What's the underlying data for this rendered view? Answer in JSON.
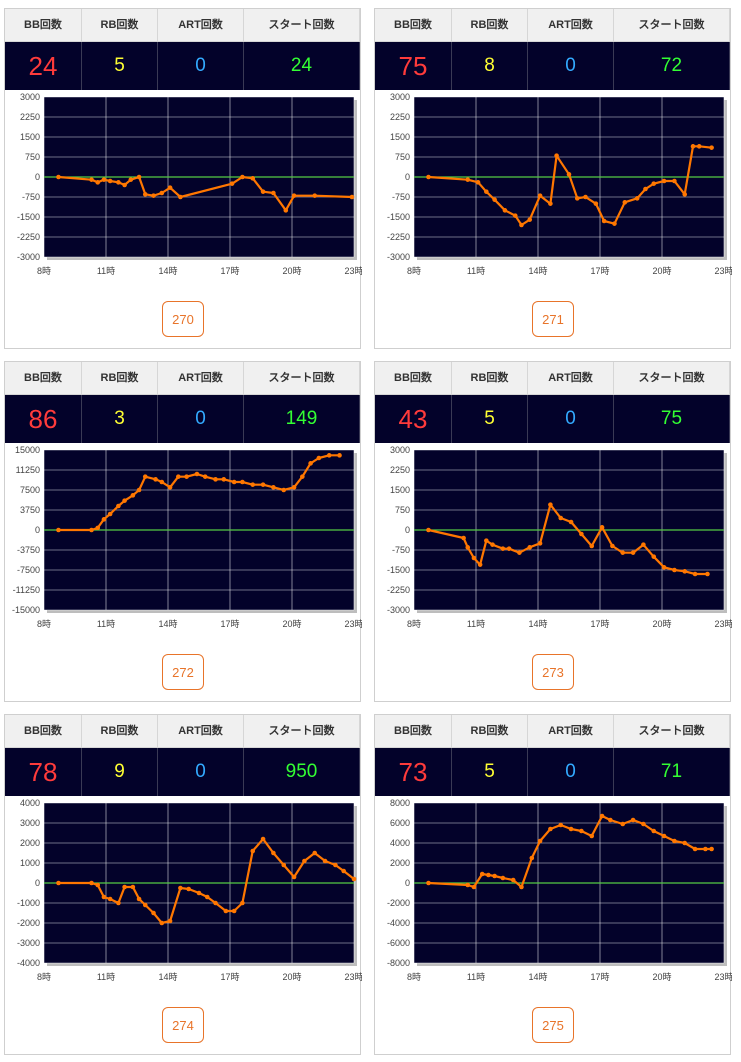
{
  "header_labels": {
    "bb": "BB回数",
    "rb": "RB回数",
    "art": "ART回数",
    "start": "スタート回数"
  },
  "colors": {
    "plot_bg": "#03022a",
    "line": "#ff7700",
    "zero_line": "#55cc44",
    "grid": "#ffffff",
    "bb": "#ff3b3b",
    "rb": "#ffff33",
    "art": "#33aaff",
    "start": "#33ff33",
    "button": "#e8742a"
  },
  "panels": [
    {
      "id": "270",
      "bb": "24",
      "rb": "5",
      "art": "0",
      "start": "24"
    },
    {
      "id": "271",
      "bb": "75",
      "rb": "8",
      "art": "0",
      "start": "72"
    },
    {
      "id": "272",
      "bb": "86",
      "rb": "3",
      "art": "0",
      "start": "149"
    },
    {
      "id": "273",
      "bb": "43",
      "rb": "5",
      "art": "0",
      "start": "75"
    },
    {
      "id": "274",
      "bb": "78",
      "rb": "9",
      "art": "0",
      "start": "950"
    },
    {
      "id": "275",
      "bb": "73",
      "rb": "5",
      "art": "0",
      "start": "71"
    }
  ],
  "chart_data": [
    {
      "type": "line",
      "xlim": [
        8,
        23
      ],
      "x_ticks": [
        "8時",
        "11時",
        "14時",
        "17時",
        "20時",
        "23時"
      ],
      "ylim": [
        -3000,
        3000
      ],
      "y_ticks": [
        "3000",
        "2250",
        "1500",
        "750",
        "0",
        "-750",
        "-1500",
        "-2250",
        "-3000"
      ],
      "grid": true,
      "series": [
        {
          "x": [
            8.7,
            10.3,
            10.6,
            10.9,
            11.2,
            11.6,
            11.9,
            12.2,
            12.6,
            12.9,
            13.3,
            13.7,
            14.1,
            14.6,
            17.1,
            17.6,
            18.1,
            18.6,
            19.1,
            19.7,
            20.1,
            21.1,
            22.9
          ],
          "y": [
            0,
            -100,
            -200,
            -100,
            -150,
            -200,
            -300,
            -100,
            0,
            -650,
            -700,
            -600,
            -400,
            -750,
            -250,
            0,
            -50,
            -550,
            -600,
            -1250,
            -700,
            -700,
            -750
          ]
        }
      ]
    },
    {
      "type": "line",
      "xlim": [
        8,
        23
      ],
      "x_ticks": [
        "8時",
        "11時",
        "14時",
        "17時",
        "20時",
        "23時"
      ],
      "ylim": [
        -3000,
        3000
      ],
      "y_ticks": [
        "3000",
        "2250",
        "1500",
        "750",
        "0",
        "-750",
        "-1500",
        "-2250",
        "-3000"
      ],
      "grid": true,
      "series": [
        {
          "x": [
            8.7,
            10.6,
            11.1,
            11.5,
            11.9,
            12.4,
            12.9,
            13.2,
            13.6,
            14.1,
            14.6,
            14.9,
            15.5,
            15.9,
            16.3,
            16.8,
            17.2,
            17.7,
            18.2,
            18.8,
            19.2,
            19.6,
            20.1,
            20.6,
            21.1,
            21.5,
            21.8,
            22.4
          ],
          "y": [
            0,
            -100,
            -200,
            -550,
            -850,
            -1250,
            -1450,
            -1800,
            -1600,
            -700,
            -1000,
            800,
            100,
            -800,
            -750,
            -1000,
            -1650,
            -1750,
            -950,
            -800,
            -450,
            -250,
            -150,
            -150,
            -650,
            1150,
            1150,
            1100
          ]
        }
      ]
    },
    {
      "type": "line",
      "xlim": [
        8,
        23
      ],
      "x_ticks": [
        "8時",
        "11時",
        "14時",
        "17時",
        "20時",
        "23時"
      ],
      "ylim": [
        -15000,
        15000
      ],
      "y_ticks": [
        "15000",
        "11250",
        "7500",
        "3750",
        "0",
        "-3750",
        "-7500",
        "-11250",
        "-15000"
      ],
      "grid": true,
      "series": [
        {
          "x": [
            8.7,
            10.3,
            10.6,
            10.9,
            11.2,
            11.6,
            11.9,
            12.3,
            12.6,
            12.9,
            13.4,
            13.7,
            14.1,
            14.5,
            14.9,
            15.4,
            15.8,
            16.3,
            16.7,
            17.2,
            17.6,
            18.1,
            18.6,
            19.1,
            19.6,
            20.1,
            20.5,
            20.9,
            21.3,
            21.8,
            22.3
          ],
          "y": [
            0,
            0,
            400,
            2000,
            3000,
            4500,
            5500,
            6500,
            7500,
            10000,
            9500,
            9000,
            8000,
            10000,
            10000,
            10500,
            10000,
            9500,
            9500,
            9000,
            9000,
            8500,
            8500,
            8000,
            7500,
            8000,
            10000,
            12500,
            13500,
            14000,
            14000
          ]
        }
      ]
    },
    {
      "type": "line",
      "xlim": [
        8,
        23
      ],
      "x_ticks": [
        "8時",
        "11時",
        "14時",
        "17時",
        "20時",
        "23時"
      ],
      "ylim": [
        -3000,
        3000
      ],
      "y_ticks": [
        "3000",
        "2250",
        "1500",
        "750",
        "0",
        "-750",
        "-1500",
        "-2250",
        "-3000"
      ],
      "grid": true,
      "series": [
        {
          "x": [
            8.7,
            10.4,
            10.6,
            10.9,
            11.2,
            11.5,
            11.8,
            12.3,
            12.6,
            13.1,
            13.6,
            14.1,
            14.6,
            15.1,
            15.6,
            16.1,
            16.6,
            17.1,
            17.6,
            18.1,
            18.6,
            19.1,
            19.6,
            20.1,
            20.6,
            21.1,
            21.6,
            22.2
          ],
          "y": [
            0,
            -300,
            -650,
            -1050,
            -1300,
            -400,
            -550,
            -700,
            -700,
            -850,
            -650,
            -500,
            950,
            450,
            300,
            -150,
            -600,
            100,
            -600,
            -850,
            -850,
            -550,
            -1000,
            -1400,
            -1500,
            -1550,
            -1650,
            -1650
          ]
        }
      ]
    },
    {
      "type": "line",
      "xlim": [
        8,
        23
      ],
      "x_ticks": [
        "8時",
        "11時",
        "14時",
        "17時",
        "20時",
        "23時"
      ],
      "ylim": [
        -4000,
        4000
      ],
      "y_ticks": [
        "4000",
        "3000",
        "2000",
        "1000",
        "0",
        "-1000",
        "-2000",
        "-3000",
        "-4000"
      ],
      "grid": true,
      "series": [
        {
          "x": [
            8.7,
            10.3,
            10.6,
            10.9,
            11.2,
            11.6,
            11.9,
            12.3,
            12.6,
            12.9,
            13.3,
            13.7,
            14.1,
            14.6,
            15.0,
            15.5,
            15.9,
            16.3,
            16.8,
            17.2,
            17.6,
            18.1,
            18.6,
            19.1,
            19.6,
            20.1,
            20.6,
            21.1,
            21.6,
            22.1,
            22.5,
            23.0
          ],
          "y": [
            0,
            0,
            -100,
            -700,
            -800,
            -1000,
            -200,
            -200,
            -800,
            -1100,
            -1500,
            -2000,
            -1900,
            -250,
            -300,
            -500,
            -700,
            -1000,
            -1400,
            -1400,
            -1000,
            1600,
            2200,
            1500,
            900,
            300,
            1100,
            1500,
            1100,
            900,
            600,
            200
          ]
        }
      ]
    },
    {
      "type": "line",
      "xlim": [
        8,
        23
      ],
      "x_ticks": [
        "8時",
        "11時",
        "14時",
        "17時",
        "20時",
        "23時"
      ],
      "ylim": [
        -8000,
        8000
      ],
      "y_ticks": [
        "8000",
        "6000",
        "4000",
        "2000",
        "0",
        "-2000",
        "-4000",
        "-6000",
        "-8000"
      ],
      "grid": true,
      "series": [
        {
          "x": [
            8.7,
            10.6,
            10.9,
            11.3,
            11.6,
            11.9,
            12.3,
            12.8,
            13.2,
            13.7,
            14.1,
            14.6,
            15.1,
            15.6,
            16.1,
            16.6,
            17.1,
            17.5,
            18.1,
            18.6,
            19.1,
            19.6,
            20.1,
            20.6,
            21.1,
            21.6,
            22.1,
            22.4
          ],
          "y": [
            0,
            -200,
            -400,
            900,
            800,
            700,
            500,
            300,
            -400,
            2500,
            4200,
            5400,
            5800,
            5400,
            5200,
            4700,
            6700,
            6300,
            5900,
            6300,
            5900,
            5200,
            4700,
            4200,
            4000,
            3400,
            3400,
            3400
          ]
        }
      ]
    }
  ]
}
